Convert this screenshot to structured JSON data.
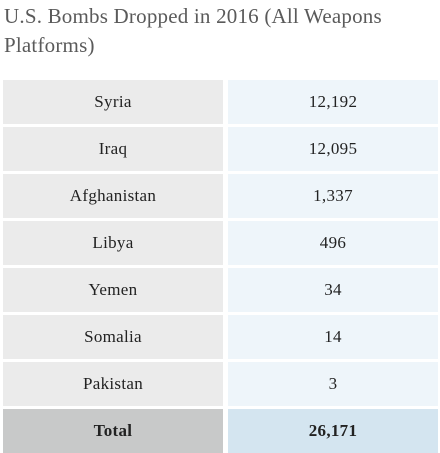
{
  "header": {
    "title": "U.S. Bombs Dropped in 2016 (All Weapons Platforms)"
  },
  "table": {
    "rows": [
      [
        "Syria",
        "12,192"
      ],
      [
        "Iraq",
        "12,095"
      ],
      [
        "Afghanistan",
        "1,337"
      ],
      [
        "Libya",
        "496"
      ],
      [
        "Yemen",
        "34"
      ],
      [
        "Somalia",
        "14"
      ],
      [
        "Pakistan",
        "3"
      ]
    ],
    "total": [
      "Total",
      "26,171"
    ]
  }
}
